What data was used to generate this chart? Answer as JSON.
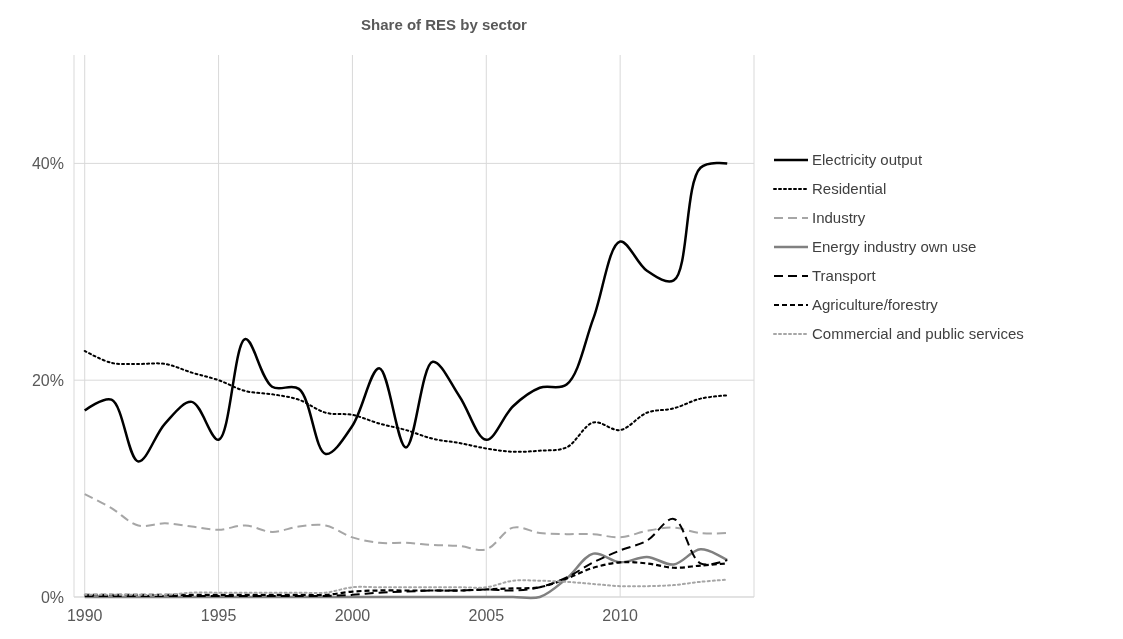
{
  "chart_data": {
    "type": "line",
    "title": "Share of RES by sector",
    "x": [
      1990,
      1991,
      1992,
      1993,
      1994,
      1995,
      1996,
      1997,
      1998,
      1999,
      2000,
      2001,
      2002,
      2003,
      2004,
      2005,
      2006,
      2007,
      2008,
      2009,
      2010,
      2011,
      2012,
      2013,
      2014
    ],
    "xlim": [
      1989.6,
      2015
    ],
    "xticks": [
      1990,
      1995,
      2000,
      2005,
      2010,
      {
        "value": 2015,
        "label": null
      }
    ],
    "ylim": [
      0,
      50
    ],
    "yticks": [
      {
        "value": 0,
        "label": "0%"
      },
      {
        "value": 20,
        "label": "20%"
      },
      {
        "value": 40,
        "label": "40%"
      }
    ],
    "grid": true,
    "legend": "right",
    "marker": "none",
    "series": [
      {
        "name": "Electricity output",
        "color": "#000000",
        "line_style": "solid",
        "values": [
          17.2,
          18.2,
          12.5,
          16.0,
          18.0,
          14.5,
          23.8,
          19.4,
          19.2,
          13.2,
          15.8,
          21.1,
          13.8,
          21.7,
          18.5,
          14.5,
          17.6,
          19.3,
          19.6,
          25.7,
          32.8,
          30.1,
          29.2,
          39.6,
          40.0
        ]
      },
      {
        "name": "Residential",
        "color": "#000000",
        "line_style": "dotted",
        "values": [
          22.7,
          21.6,
          21.5,
          21.5,
          20.7,
          20.0,
          19.0,
          18.7,
          18.2,
          17.0,
          16.8,
          16.0,
          15.4,
          14.6,
          14.2,
          13.7,
          13.4,
          13.5,
          13.8,
          16.1,
          15.4,
          17.0,
          17.4,
          18.3,
          18.6
        ]
      },
      {
        "name": "Industry",
        "color": "#a6a6a6",
        "line_style": "dashed",
        "values": [
          9.5,
          8.2,
          6.6,
          6.8,
          6.5,
          6.2,
          6.6,
          6.0,
          6.5,
          6.6,
          5.5,
          5.0,
          5.0,
          4.8,
          4.7,
          4.4,
          6.4,
          5.9,
          5.8,
          5.8,
          5.5,
          6.1,
          6.4,
          5.9,
          5.9
        ]
      },
      {
        "name": "Energy industry own use",
        "color": "#808080",
        "line_style": "solid",
        "values": [
          0,
          0,
          0,
          0,
          0,
          0,
          0,
          0,
          0,
          0,
          0,
          0,
          0,
          0,
          0,
          0,
          0,
          0,
          1.7,
          4.0,
          3.2,
          3.7,
          3.0,
          4.4,
          3.4
        ]
      },
      {
        "name": "Transport",
        "color": "#000000",
        "line_style": "dashed",
        "values": [
          0.1,
          0.1,
          0.1,
          0.1,
          0.1,
          0.1,
          0.1,
          0.1,
          0.1,
          0.1,
          0.2,
          0.4,
          0.5,
          0.6,
          0.6,
          0.7,
          0.6,
          0.9,
          1.8,
          3.2,
          4.3,
          5.2,
          7.2,
          3.1,
          3.4
        ]
      },
      {
        "name": "Agriculture/forestry",
        "color": "#000000",
        "line_style": "dashed",
        "values": [
          0.2,
          0.2,
          0.2,
          0.2,
          0.2,
          0.2,
          0.2,
          0.2,
          0.2,
          0.2,
          0.5,
          0.6,
          0.6,
          0.6,
          0.6,
          0.7,
          0.8,
          0.9,
          1.7,
          2.7,
          3.2,
          3.1,
          2.7,
          2.9,
          3.1
        ]
      },
      {
        "name": "Commercial and public services",
        "color": "#a6a6a6",
        "line_style": "dotted",
        "values": [
          0.2,
          0.2,
          0.2,
          0.2,
          0.4,
          0.4,
          0.4,
          0.4,
          0.4,
          0.4,
          0.9,
          0.9,
          0.9,
          0.9,
          0.9,
          0.9,
          1.5,
          1.5,
          1.4,
          1.2,
          1.0,
          1.0,
          1.1,
          1.4,
          1.6
        ]
      }
    ]
  }
}
